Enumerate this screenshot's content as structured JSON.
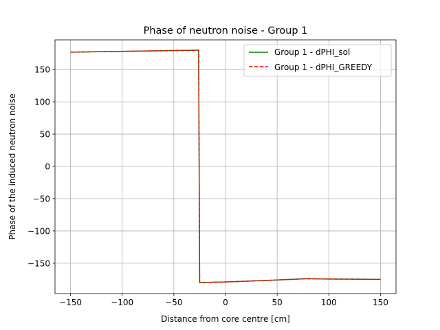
{
  "chart_data": {
    "type": "line",
    "title": "Phase of neutron noise - Group 1",
    "xlabel": "Distance from core centre [cm]",
    "ylabel": "Phase of the induced neutron noise",
    "xlim": [
      -165,
      165
    ],
    "ylim": [
      -197,
      196
    ],
    "x_ticks": [
      -150,
      -100,
      -50,
      0,
      50,
      100,
      150
    ],
    "y_ticks": [
      -150,
      -100,
      -50,
      0,
      50,
      100,
      150
    ],
    "x_tick_labels": [
      "−150",
      "−100",
      "−50",
      "0",
      "50",
      "100",
      "150"
    ],
    "y_tick_labels": [
      "−150",
      "−100",
      "−50",
      "0",
      "50",
      "100",
      "150"
    ],
    "grid": true,
    "legend_position": "top-right",
    "series": [
      {
        "name": "Group 1 - dPHI_sol",
        "color": "#008000",
        "style": "solid",
        "x": [
          -150,
          -26,
          -25,
          0,
          50,
          78,
          100,
          150
        ],
        "y": [
          177,
          180,
          -180,
          -179,
          -176,
          -174,
          -174.5,
          -175
        ]
      },
      {
        "name": "Group 1 - dPHI_GREEDY",
        "color": "#ff0000",
        "style": "dashed",
        "x": [
          -150,
          -26,
          -25,
          0,
          50,
          78,
          100,
          150
        ],
        "y": [
          177,
          180,
          -180,
          -179,
          -176,
          -174,
          -174.5,
          -175
        ]
      }
    ]
  }
}
